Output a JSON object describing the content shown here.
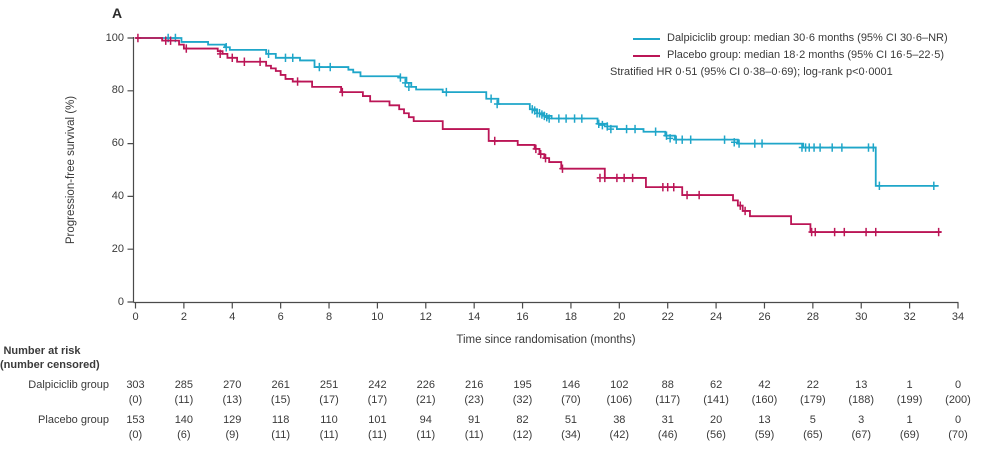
{
  "panel_label": "A",
  "colors": {
    "dalpiciclib": "#1FA6C9",
    "placebo": "#BB1556",
    "text": "#3A3A3A",
    "axis": "#4A4A4A"
  },
  "chart_data": {
    "type": "line",
    "subtype": "kaplan-meier-step-curve",
    "xlabel": "Time since randomisation (months)",
    "ylabel": "Progression-free survival (%)",
    "xlim": [
      0,
      34
    ],
    "ylim": [
      0,
      100
    ],
    "grid": false,
    "legend_position": "top-right",
    "xticks": [
      0,
      2,
      4,
      6,
      8,
      10,
      12,
      14,
      16,
      18,
      20,
      22,
      24,
      26,
      28,
      30,
      32,
      34
    ],
    "yticks": [
      0,
      20,
      40,
      60,
      80,
      100
    ],
    "legend": {
      "entries": [
        {
          "series": "dalpiciclib",
          "label": "Dalpiciclib group: median 30·6 months (95% CI 30·6–NR)"
        },
        {
          "series": "placebo",
          "label": "Placebo group: median 18·2 months (95% CI 16·5–22·5)"
        }
      ],
      "note": "Stratified HR 0·51 (95% CI 0·38–0·69); log-rank p<0·0001"
    },
    "series": [
      {
        "name": "Dalpiciclib group",
        "color_key": "dalpiciclib",
        "median_months": "30·6",
        "end_month": 33.2,
        "points": [
          [
            0,
            100
          ],
          [
            1.9,
            98.5
          ],
          [
            3.0,
            97.5
          ],
          [
            3.7,
            96.5
          ],
          [
            3.9,
            95.5
          ],
          [
            5.4,
            94
          ],
          [
            5.8,
            92.5
          ],
          [
            6.8,
            91.5
          ],
          [
            7.4,
            89
          ],
          [
            8.8,
            88
          ],
          [
            9.0,
            87
          ],
          [
            9.3,
            85.5
          ],
          [
            10.9,
            85
          ],
          [
            11.2,
            83
          ],
          [
            11.4,
            81.5
          ],
          [
            11.6,
            80.5
          ],
          [
            12.7,
            79.5
          ],
          [
            14.5,
            77
          ],
          [
            15.0,
            75
          ],
          [
            16.3,
            73
          ],
          [
            16.6,
            71.5
          ],
          [
            16.9,
            70.5
          ],
          [
            17.2,
            69.5
          ],
          [
            19.1,
            67.5
          ],
          [
            19.5,
            66.5
          ],
          [
            19.9,
            65.5
          ],
          [
            21.0,
            64.5
          ],
          [
            21.9,
            63
          ],
          [
            22.3,
            61.5
          ],
          [
            24.9,
            60
          ],
          [
            27.6,
            58.5
          ],
          [
            30.6,
            44
          ]
        ],
        "censors": [
          [
            1.35,
            100
          ],
          [
            1.65,
            100
          ],
          [
            3.75,
            96.5
          ],
          [
            5.5,
            94
          ],
          [
            6.2,
            92.5
          ],
          [
            6.5,
            92.5
          ],
          [
            7.6,
            89
          ],
          [
            8.05,
            89
          ],
          [
            10.95,
            85
          ],
          [
            11.15,
            83
          ],
          [
            11.3,
            81.5
          ],
          [
            12.85,
            79.5
          ],
          [
            14.7,
            77
          ],
          [
            14.95,
            75
          ],
          [
            16.4,
            73
          ],
          [
            16.5,
            72.5
          ],
          [
            16.6,
            71.5
          ],
          [
            16.7,
            71.5
          ],
          [
            16.8,
            71
          ],
          [
            16.9,
            70.5
          ],
          [
            17.0,
            70
          ],
          [
            17.1,
            69.5
          ],
          [
            17.5,
            69.5
          ],
          [
            17.8,
            69.5
          ],
          [
            18.15,
            69.5
          ],
          [
            18.45,
            69.5
          ],
          [
            19.15,
            67.5
          ],
          [
            19.3,
            67
          ],
          [
            19.5,
            66.5
          ],
          [
            19.65,
            65.5
          ],
          [
            20.3,
            65.5
          ],
          [
            20.65,
            65.5
          ],
          [
            21.5,
            64.5
          ],
          [
            21.95,
            63
          ],
          [
            22.1,
            62
          ],
          [
            22.35,
            61.5
          ],
          [
            22.6,
            61.5
          ],
          [
            22.95,
            61.5
          ],
          [
            24.35,
            61.5
          ],
          [
            24.75,
            60.5
          ],
          [
            24.95,
            60
          ],
          [
            25.6,
            60
          ],
          [
            25.9,
            60
          ],
          [
            27.55,
            58.5
          ],
          [
            27.7,
            58.5
          ],
          [
            27.85,
            58.5
          ],
          [
            28.05,
            58.5
          ],
          [
            28.3,
            58.5
          ],
          [
            28.8,
            58.5
          ],
          [
            29.2,
            58.5
          ],
          [
            30.3,
            58.5
          ],
          [
            30.5,
            58.5
          ],
          [
            30.75,
            44
          ],
          [
            33.0,
            44
          ]
        ]
      },
      {
        "name": "Placebo group",
        "color_key": "placebo",
        "median_months": "18·2",
        "end_month": 33.3,
        "points": [
          [
            0,
            100
          ],
          [
            1.1,
            99
          ],
          [
            1.8,
            97.5
          ],
          [
            2.0,
            96
          ],
          [
            3.4,
            95
          ],
          [
            3.6,
            94
          ],
          [
            3.8,
            92.5
          ],
          [
            4.2,
            91
          ],
          [
            5.4,
            89.5
          ],
          [
            5.6,
            88.5
          ],
          [
            5.8,
            87.5
          ],
          [
            6.0,
            86
          ],
          [
            6.2,
            84.5
          ],
          [
            6.5,
            83.5
          ],
          [
            7.3,
            81.5
          ],
          [
            8.5,
            79.5
          ],
          [
            9.4,
            78
          ],
          [
            9.7,
            76
          ],
          [
            10.5,
            74.5
          ],
          [
            10.9,
            73
          ],
          [
            11.1,
            71.5
          ],
          [
            11.3,
            70
          ],
          [
            11.5,
            68.5
          ],
          [
            12.7,
            65.5
          ],
          [
            14.6,
            61
          ],
          [
            15.8,
            59.5
          ],
          [
            16.5,
            58
          ],
          [
            16.7,
            56
          ],
          [
            16.9,
            54.5
          ],
          [
            17.1,
            53
          ],
          [
            17.6,
            50.5
          ],
          [
            19.4,
            47
          ],
          [
            21.1,
            43.5
          ],
          [
            22.6,
            40.5
          ],
          [
            24.7,
            38.5
          ],
          [
            24.9,
            36.5
          ],
          [
            25.1,
            34.5
          ],
          [
            25.4,
            32.5
          ],
          [
            27.1,
            29.5
          ],
          [
            27.9,
            26.5
          ]
        ],
        "censors": [
          [
            0.1,
            100
          ],
          [
            1.25,
            99
          ],
          [
            1.45,
            99
          ],
          [
            2.1,
            96
          ],
          [
            3.5,
            94
          ],
          [
            4.0,
            92.5
          ],
          [
            4.5,
            91
          ],
          [
            5.15,
            91
          ],
          [
            6.7,
            83.5
          ],
          [
            8.55,
            79.5
          ],
          [
            14.85,
            61
          ],
          [
            16.55,
            58
          ],
          [
            16.75,
            56
          ],
          [
            16.95,
            54.5
          ],
          [
            17.65,
            50.5
          ],
          [
            19.2,
            47
          ],
          [
            19.4,
            47
          ],
          [
            19.9,
            47
          ],
          [
            20.2,
            47
          ],
          [
            20.55,
            47
          ],
          [
            21.8,
            43.5
          ],
          [
            22.0,
            43.5
          ],
          [
            22.25,
            43.5
          ],
          [
            22.8,
            40.5
          ],
          [
            23.3,
            40.5
          ],
          [
            25.0,
            36.5
          ],
          [
            25.2,
            34.5
          ],
          [
            27.95,
            26.5
          ],
          [
            28.1,
            26.5
          ],
          [
            28.9,
            26.5
          ],
          [
            29.3,
            26.5
          ],
          [
            30.2,
            26.5
          ],
          [
            30.6,
            26.5
          ],
          [
            33.2,
            26.5
          ]
        ]
      }
    ]
  },
  "at_risk_table": {
    "header_line1": "Number at risk",
    "header_line2": "(number censored)",
    "months": [
      0,
      2,
      4,
      6,
      8,
      10,
      12,
      14,
      16,
      18,
      20,
      22,
      24,
      26,
      28,
      30,
      32,
      34
    ],
    "rows": [
      {
        "label": "Dalpiciclib group",
        "n": [
          "303",
          "285",
          "270",
          "261",
          "251",
          "242",
          "226",
          "216",
          "195",
          "146",
          "102",
          "88",
          "62",
          "42",
          "22",
          "13",
          "1",
          "0"
        ],
        "censored": [
          "(0)",
          "(11)",
          "(13)",
          "(15)",
          "(17)",
          "(17)",
          "(21)",
          "(23)",
          "(32)",
          "(70)",
          "(106)",
          "(117)",
          "(141)",
          "(160)",
          "(179)",
          "(188)",
          "(199)",
          "(200)"
        ]
      },
      {
        "label": "Placebo group",
        "n": [
          "153",
          "140",
          "129",
          "118",
          "110",
          "101",
          "94",
          "91",
          "82",
          "51",
          "38",
          "31",
          "20",
          "13",
          "5",
          "3",
          "1",
          "0"
        ],
        "censored": [
          "(0)",
          "(6)",
          "(9)",
          "(11)",
          "(11)",
          "(11)",
          "(11)",
          "(11)",
          "(12)",
          "(34)",
          "(42)",
          "(46)",
          "(56)",
          "(59)",
          "(65)",
          "(67)",
          "(69)",
          "(70)"
        ]
      }
    ]
  }
}
